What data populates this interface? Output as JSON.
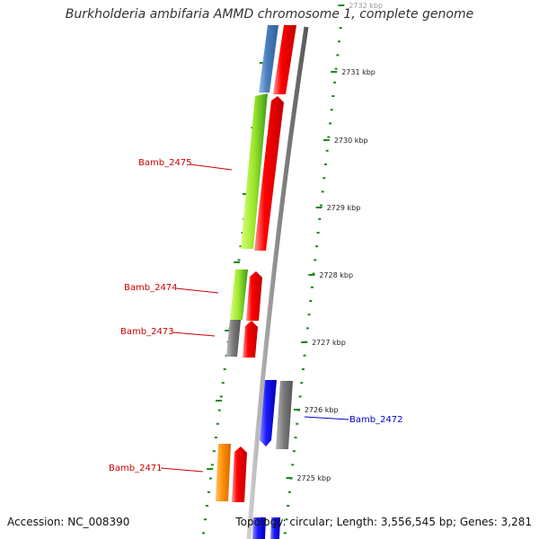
{
  "title": "Burkholderia ambifaria AMMD chromosome 1, complete genome",
  "accession": "Accession: NC_008390",
  "summary": "Topology: circular; Length: 3,556,545 bp; Genes: 3,281",
  "ticks": [
    "2732 kbp",
    "2731 kbp",
    "2730 kbp",
    "2729 kbp",
    "2728 kbp",
    "2727 kbp",
    "2726 kbp",
    "2725 kbp"
  ],
  "gene_labels": [
    {
      "label": "Bamb_2475",
      "color": "#cc0000"
    },
    {
      "label": "Bamb_2474",
      "color": "#cc0000"
    },
    {
      "label": "Bamb_2473",
      "color": "#cc0000"
    },
    {
      "label": "Bamb_2472",
      "color": "#0000cc"
    },
    {
      "label": "Bamb_2471",
      "color": "#cc0000"
    }
  ],
  "colors": {
    "backbone": "#888888",
    "cds": "#ff0000",
    "orf_blue": "#4a7fbf",
    "lime": "#9ae62a",
    "green": "#2f9a1f",
    "gray": "#777777",
    "blue": "#1a1aff",
    "orange": "#ff8c00",
    "tick": "#1a8a1a"
  }
}
